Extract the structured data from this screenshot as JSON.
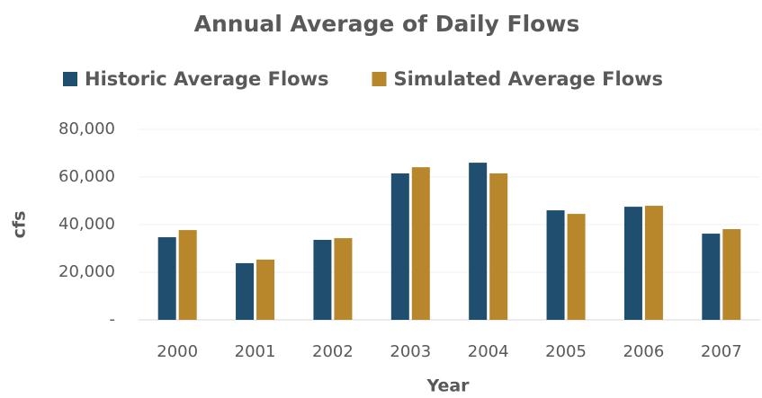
{
  "chart_data": {
    "type": "bar",
    "title": "Annual Average of Daily Flows",
    "x_label": "Year",
    "y_label": "cfs",
    "categories": [
      "2000",
      "2001",
      "2002",
      "2003",
      "2004",
      "2005",
      "2006",
      "2007"
    ],
    "series": [
      {
        "name": "Historic Average Flows",
        "color": "#1f4e6e",
        "values": [
          34700,
          23800,
          33600,
          61500,
          66000,
          46000,
          47500,
          36200
        ]
      },
      {
        "name": "Simulated Average Flows",
        "color": "#b8862b",
        "values": [
          37700,
          25300,
          34300,
          64100,
          61500,
          44500,
          47900,
          38100
        ]
      }
    ],
    "ylim": [
      0,
      80000
    ],
    "yticks": [
      {
        "value": 0,
        "label": "-"
      },
      {
        "value": 20000,
        "label": "20,000"
      },
      {
        "value": 40000,
        "label": "40,000"
      },
      {
        "value": 60000,
        "label": "60,000"
      },
      {
        "value": 80000,
        "label": "80,000"
      }
    ],
    "grid": true,
    "legend": "top"
  }
}
